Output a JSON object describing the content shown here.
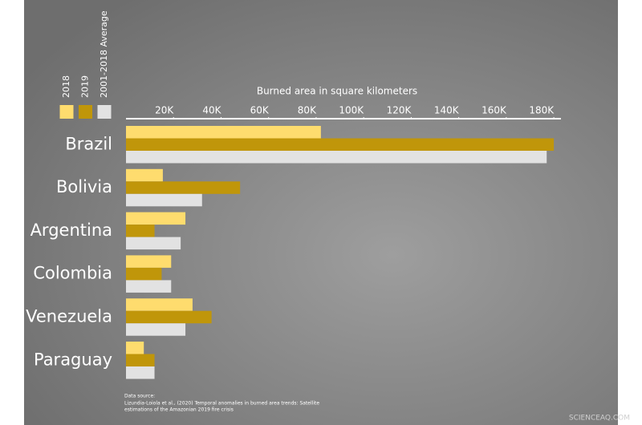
{
  "chart_data": {
    "type": "bar",
    "orientation": "horizontal",
    "x_label": "Burned area in square kilometers",
    "categories": [
      "Brazil",
      "Bolivia",
      "Argentina",
      "Colombia",
      "Venezuela",
      "Paraguay"
    ],
    "series": [
      {
        "name": "2018",
        "color": "#fedc6e",
        "values": [
          82000,
          15500,
          25000,
          19000,
          28000,
          7500
        ]
      },
      {
        "name": "2019",
        "color": "#c0960a",
        "values": [
          180000,
          48000,
          12000,
          15000,
          36000,
          12000
        ]
      },
      {
        "name": "2001-2018 Average",
        "color": "#e2e2e2",
        "values": [
          177000,
          32000,
          23000,
          19000,
          25000,
          12000
        ]
      }
    ],
    "xlim": [
      0,
      183000
    ],
    "xticks": [
      {
        "value": 20000,
        "label": "20K"
      },
      {
        "value": 40000,
        "label": "40K"
      },
      {
        "value": 60000,
        "label": "60K"
      },
      {
        "value": 80000,
        "label": "80K"
      },
      {
        "value": 100000,
        "label": "100K"
      },
      {
        "value": 120000,
        "label": "120K"
      },
      {
        "value": 140000,
        "label": "140K"
      },
      {
        "value": 160000,
        "label": "160K"
      },
      {
        "value": 180000,
        "label": "180K"
      }
    ],
    "source": [
      "Data source:",
      "Lizundia-Loiola et al., (2020) Temporal anomalies in burned area trends: Satellite",
      "estimations of the Amazonian 2019 fire crisis"
    ],
    "watermark": "SCIENCEAQ.COM"
  }
}
